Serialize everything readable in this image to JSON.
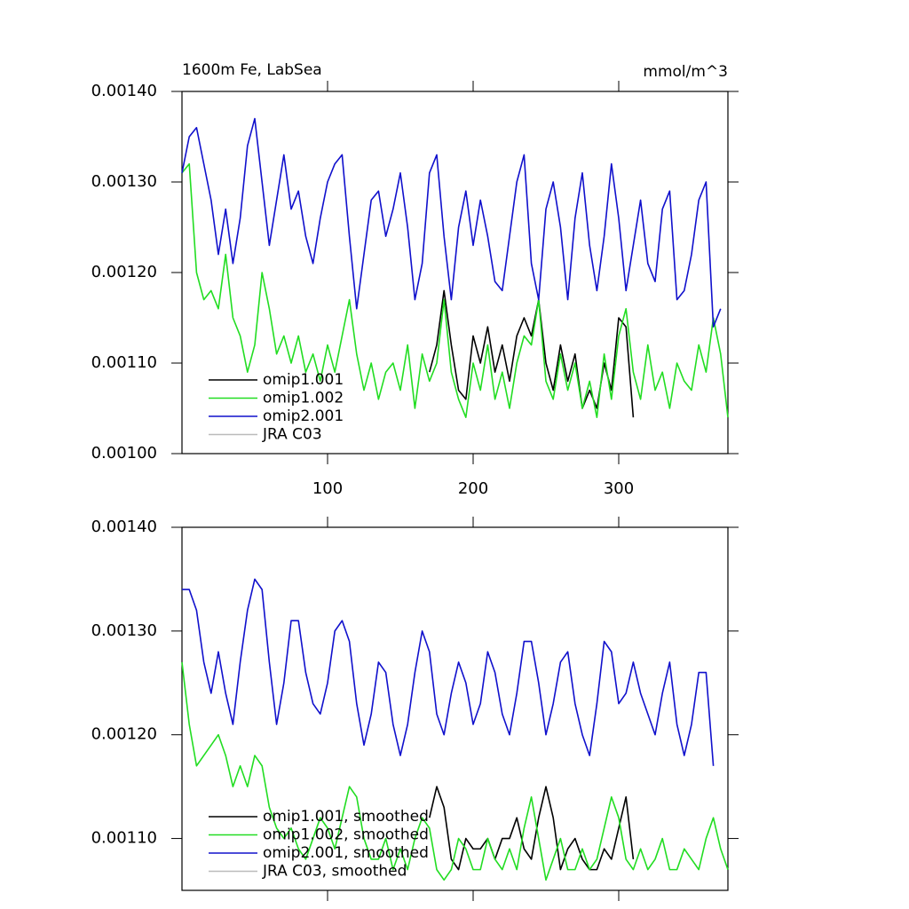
{
  "chart_data": [
    {
      "type": "line",
      "title": "1600m Fe, LabSea",
      "units": "mmol/m^3",
      "x": [
        0,
        5,
        10,
        15,
        20,
        25,
        30,
        35,
        40,
        45,
        50,
        55,
        60,
        65,
        70,
        75,
        80,
        85,
        90,
        95,
        100,
        105,
        110,
        115,
        120,
        125,
        130,
        135,
        140,
        145,
        150,
        155,
        160,
        165,
        170,
        175,
        180,
        185,
        190,
        195,
        200,
        205,
        210,
        215,
        220,
        225,
        230,
        235,
        240,
        245,
        250,
        255,
        260,
        265,
        270,
        275,
        280,
        285,
        290,
        295,
        300,
        305,
        310,
        315,
        320,
        325,
        330,
        335,
        340,
        345,
        350,
        355,
        360,
        365,
        370,
        375
      ],
      "xlim": [
        0,
        375
      ],
      "xticks": [
        100,
        200,
        300
      ],
      "ylim": [
        0.001,
        0.0014
      ],
      "yticks": [
        {
          "value": 0.001,
          "label": "0.00100"
        },
        {
          "value": 0.0011,
          "label": "0.00110"
        },
        {
          "value": 0.0012,
          "label": "0.00120"
        },
        {
          "value": 0.0013,
          "label": "0.00130"
        },
        {
          "value": 0.0014,
          "label": "0.00140"
        }
      ],
      "legend": "lower left",
      "series": [
        {
          "name": "omip1.001",
          "color": "#000000",
          "values": [
            null,
            null,
            null,
            null,
            null,
            null,
            null,
            null,
            null,
            null,
            null,
            null,
            null,
            null,
            null,
            null,
            null,
            null,
            null,
            null,
            null,
            null,
            null,
            null,
            null,
            null,
            null,
            null,
            null,
            null,
            null,
            null,
            null,
            null,
            0.00109,
            0.00112,
            0.00118,
            0.00112,
            0.00107,
            0.00106,
            0.00113,
            0.0011,
            0.00114,
            0.00109,
            0.00112,
            0.00108,
            0.00113,
            0.00115,
            0.00113,
            0.00117,
            0.0011,
            0.00107,
            0.00112,
            0.00108,
            0.00111,
            0.00105,
            0.00107,
            0.00105,
            0.0011,
            0.00107,
            0.00115,
            0.00114,
            0.00104,
            null,
            null,
            null,
            null,
            null,
            null,
            null,
            null,
            null,
            null,
            null,
            null,
            null
          ]
        },
        {
          "name": "omip1.002",
          "color": "#22dd22",
          "values": [
            0.00131,
            0.00132,
            0.0012,
            0.00117,
            0.00118,
            0.00116,
            0.00122,
            0.00115,
            0.00113,
            0.00109,
            0.00112,
            0.0012,
            0.00116,
            0.00111,
            0.00113,
            0.0011,
            0.00113,
            0.00109,
            0.00111,
            0.00108,
            0.00112,
            0.00109,
            0.00113,
            0.00117,
            0.00111,
            0.00107,
            0.0011,
            0.00106,
            0.00109,
            0.0011,
            0.00107,
            0.00112,
            0.00105,
            0.00111,
            0.00108,
            0.0011,
            0.00117,
            0.00109,
            0.00106,
            0.00104,
            0.0011,
            0.00107,
            0.00112,
            0.00106,
            0.00109,
            0.00105,
            0.0011,
            0.00113,
            0.00112,
            0.00117,
            0.00108,
            0.00106,
            0.00111,
            0.00107,
            0.0011,
            0.00105,
            0.00108,
            0.00104,
            0.00111,
            0.00106,
            0.00113,
            0.00116,
            0.00109,
            0.00106,
            0.00112,
            0.00107,
            0.00109,
            0.00105,
            0.0011,
            0.00108,
            0.00107,
            0.00112,
            0.00109,
            0.00115,
            0.00111,
            0.00104
          ]
        },
        {
          "name": "omip2.001",
          "color": "#1010cc",
          "values": [
            0.00131,
            0.00135,
            0.00136,
            0.00132,
            0.00128,
            0.00122,
            0.00127,
            0.00121,
            0.00126,
            0.00134,
            0.00137,
            0.0013,
            0.00123,
            0.00128,
            0.00133,
            0.00127,
            0.00129,
            0.00124,
            0.00121,
            0.00126,
            0.0013,
            0.00132,
            0.00133,
            0.00124,
            0.00116,
            0.00122,
            0.00128,
            0.00129,
            0.00124,
            0.00127,
            0.00131,
            0.00125,
            0.00117,
            0.00121,
            0.00131,
            0.00133,
            0.00124,
            0.00117,
            0.00125,
            0.00129,
            0.00123,
            0.00128,
            0.00124,
            0.00119,
            0.00118,
            0.00124,
            0.0013,
            0.00133,
            0.00121,
            0.00117,
            0.00127,
            0.0013,
            0.00125,
            0.00117,
            0.00126,
            0.00131,
            0.00123,
            0.00118,
            0.00124,
            0.00132,
            0.00126,
            0.00118,
            0.00123,
            0.00128,
            0.00121,
            0.00119,
            0.00127,
            0.00129,
            0.00117,
            0.00118,
            0.00122,
            0.00128,
            0.0013,
            0.00114,
            0.00116,
            null
          ]
        },
        {
          "name": "JRA C03",
          "color": "#bbbbbb",
          "values": [
            null,
            null,
            null,
            null,
            null,
            null,
            null,
            null,
            null,
            null,
            null,
            null,
            null,
            null,
            null,
            null,
            null,
            null,
            null,
            null,
            null,
            null,
            null,
            null,
            null,
            null,
            null,
            null,
            null,
            null,
            null,
            null,
            null,
            null,
            null,
            null,
            null,
            null,
            null,
            null,
            null,
            null,
            null,
            null,
            null,
            null,
            null,
            null,
            null,
            null,
            null,
            null,
            null,
            null,
            null,
            null,
            null,
            null,
            null,
            null,
            null,
            null,
            null,
            null,
            null,
            null,
            null,
            null,
            null,
            null,
            null,
            null,
            null,
            null,
            null,
            null
          ]
        }
      ]
    },
    {
      "type": "line",
      "x": [
        0,
        5,
        10,
        15,
        20,
        25,
        30,
        35,
        40,
        45,
        50,
        55,
        60,
        65,
        70,
        75,
        80,
        85,
        90,
        95,
        100,
        105,
        110,
        115,
        120,
        125,
        130,
        135,
        140,
        145,
        150,
        155,
        160,
        165,
        170,
        175,
        180,
        185,
        190,
        195,
        200,
        205,
        210,
        215,
        220,
        225,
        230,
        235,
        240,
        245,
        250,
        255,
        260,
        265,
        270,
        275,
        280,
        285,
        290,
        295,
        300,
        305,
        310,
        315,
        320,
        325,
        330,
        335,
        340,
        345,
        350,
        355,
        360,
        365,
        370,
        375
      ],
      "xlim": [
        0,
        375
      ],
      "xticks": [
        100,
        200,
        300
      ],
      "ylim": [
        0.00105,
        0.0014
      ],
      "yticks": [
        {
          "value": 0.0011,
          "label": "0.00110"
        },
        {
          "value": 0.0012,
          "label": "0.00120"
        },
        {
          "value": 0.0013,
          "label": "0.00130"
        },
        {
          "value": 0.0014,
          "label": "0.00140"
        }
      ],
      "legend": "lower left",
      "series": [
        {
          "name": "omip1.001, smoothed",
          "color": "#000000",
          "values": [
            null,
            null,
            null,
            null,
            null,
            null,
            null,
            null,
            null,
            null,
            null,
            null,
            null,
            null,
            null,
            null,
            null,
            null,
            null,
            null,
            null,
            null,
            null,
            null,
            null,
            null,
            null,
            null,
            null,
            null,
            null,
            null,
            null,
            null,
            0.00112,
            0.00115,
            0.00113,
            0.00108,
            0.00107,
            0.0011,
            0.00109,
            0.00109,
            0.0011,
            0.00108,
            0.0011,
            0.0011,
            0.00112,
            0.00109,
            0.00108,
            0.00112,
            0.00115,
            0.00112,
            0.00107,
            0.00109,
            0.0011,
            0.00108,
            0.00107,
            0.00107,
            0.00109,
            0.00108,
            0.00111,
            0.00114,
            0.00108,
            null,
            null,
            null,
            null,
            null,
            null,
            null,
            null,
            null,
            null,
            null,
            null,
            null
          ]
        },
        {
          "name": "omip1.002, smoothed",
          "color": "#22dd22",
          "values": [
            0.00127,
            0.00121,
            0.00117,
            0.00118,
            0.00119,
            0.0012,
            0.00118,
            0.00115,
            0.00117,
            0.00115,
            0.00118,
            0.00117,
            0.00113,
            0.00111,
            0.0011,
            0.00111,
            0.00109,
            0.00108,
            0.0011,
            0.00112,
            0.00111,
            0.00109,
            0.00112,
            0.00115,
            0.00114,
            0.0011,
            0.00108,
            0.00108,
            0.0011,
            0.00107,
            0.00109,
            0.00107,
            0.0011,
            0.00112,
            0.00111,
            0.00107,
            0.00106,
            0.00107,
            0.0011,
            0.00109,
            0.00107,
            0.00107,
            0.0011,
            0.00108,
            0.00107,
            0.00109,
            0.00107,
            0.00111,
            0.00114,
            0.0011,
            0.00106,
            0.00108,
            0.0011,
            0.00107,
            0.00107,
            0.00109,
            0.00107,
            0.00108,
            0.00111,
            0.00114,
            0.00112,
            0.00108,
            0.00107,
            0.00109,
            0.00107,
            0.00108,
            0.0011,
            0.00107,
            0.00107,
            0.00109,
            0.00108,
            0.00107,
            0.0011,
            0.00112,
            0.00109,
            0.00107
          ]
        },
        {
          "name": "omip2.001, smoothed",
          "color": "#1010cc",
          "values": [
            0.00134,
            0.00134,
            0.00132,
            0.00127,
            0.00124,
            0.00128,
            0.00124,
            0.00121,
            0.00127,
            0.00132,
            0.00135,
            0.00134,
            0.00127,
            0.00121,
            0.00125,
            0.00131,
            0.00131,
            0.00126,
            0.00123,
            0.00122,
            0.00125,
            0.0013,
            0.00131,
            0.00129,
            0.00123,
            0.00119,
            0.00122,
            0.00127,
            0.00126,
            0.00121,
            0.00118,
            0.00121,
            0.00126,
            0.0013,
            0.00128,
            0.00122,
            0.0012,
            0.00124,
            0.00127,
            0.00125,
            0.00121,
            0.00123,
            0.00128,
            0.00126,
            0.00122,
            0.0012,
            0.00124,
            0.00129,
            0.00129,
            0.00125,
            0.0012,
            0.00123,
            0.00127,
            0.00128,
            0.00123,
            0.0012,
            0.00118,
            0.00123,
            0.00129,
            0.00128,
            0.00123,
            0.00124,
            0.00127,
            0.00124,
            0.00122,
            0.0012,
            0.00124,
            0.00127,
            0.00121,
            0.00118,
            0.00121,
            0.00126,
            0.00126,
            0.00117,
            null,
            null
          ]
        },
        {
          "name": "JRA C03, smoothed",
          "color": "#bbbbbb",
          "values": [
            null,
            null,
            null,
            null,
            null,
            null,
            null,
            null,
            null,
            null,
            null,
            null,
            null,
            null,
            null,
            null,
            null,
            null,
            null,
            null,
            null,
            null,
            null,
            null,
            null,
            null,
            null,
            null,
            null,
            null,
            null,
            null,
            null,
            null,
            null,
            null,
            null,
            null,
            null,
            null,
            null,
            null,
            null,
            null,
            null,
            null,
            null,
            null,
            null,
            null,
            null,
            null,
            null,
            null,
            null,
            null,
            null,
            null,
            null,
            null,
            null,
            null,
            null,
            null,
            null,
            null,
            null,
            null,
            null,
            null,
            null,
            null,
            null,
            null,
            null,
            null
          ]
        }
      ]
    }
  ]
}
